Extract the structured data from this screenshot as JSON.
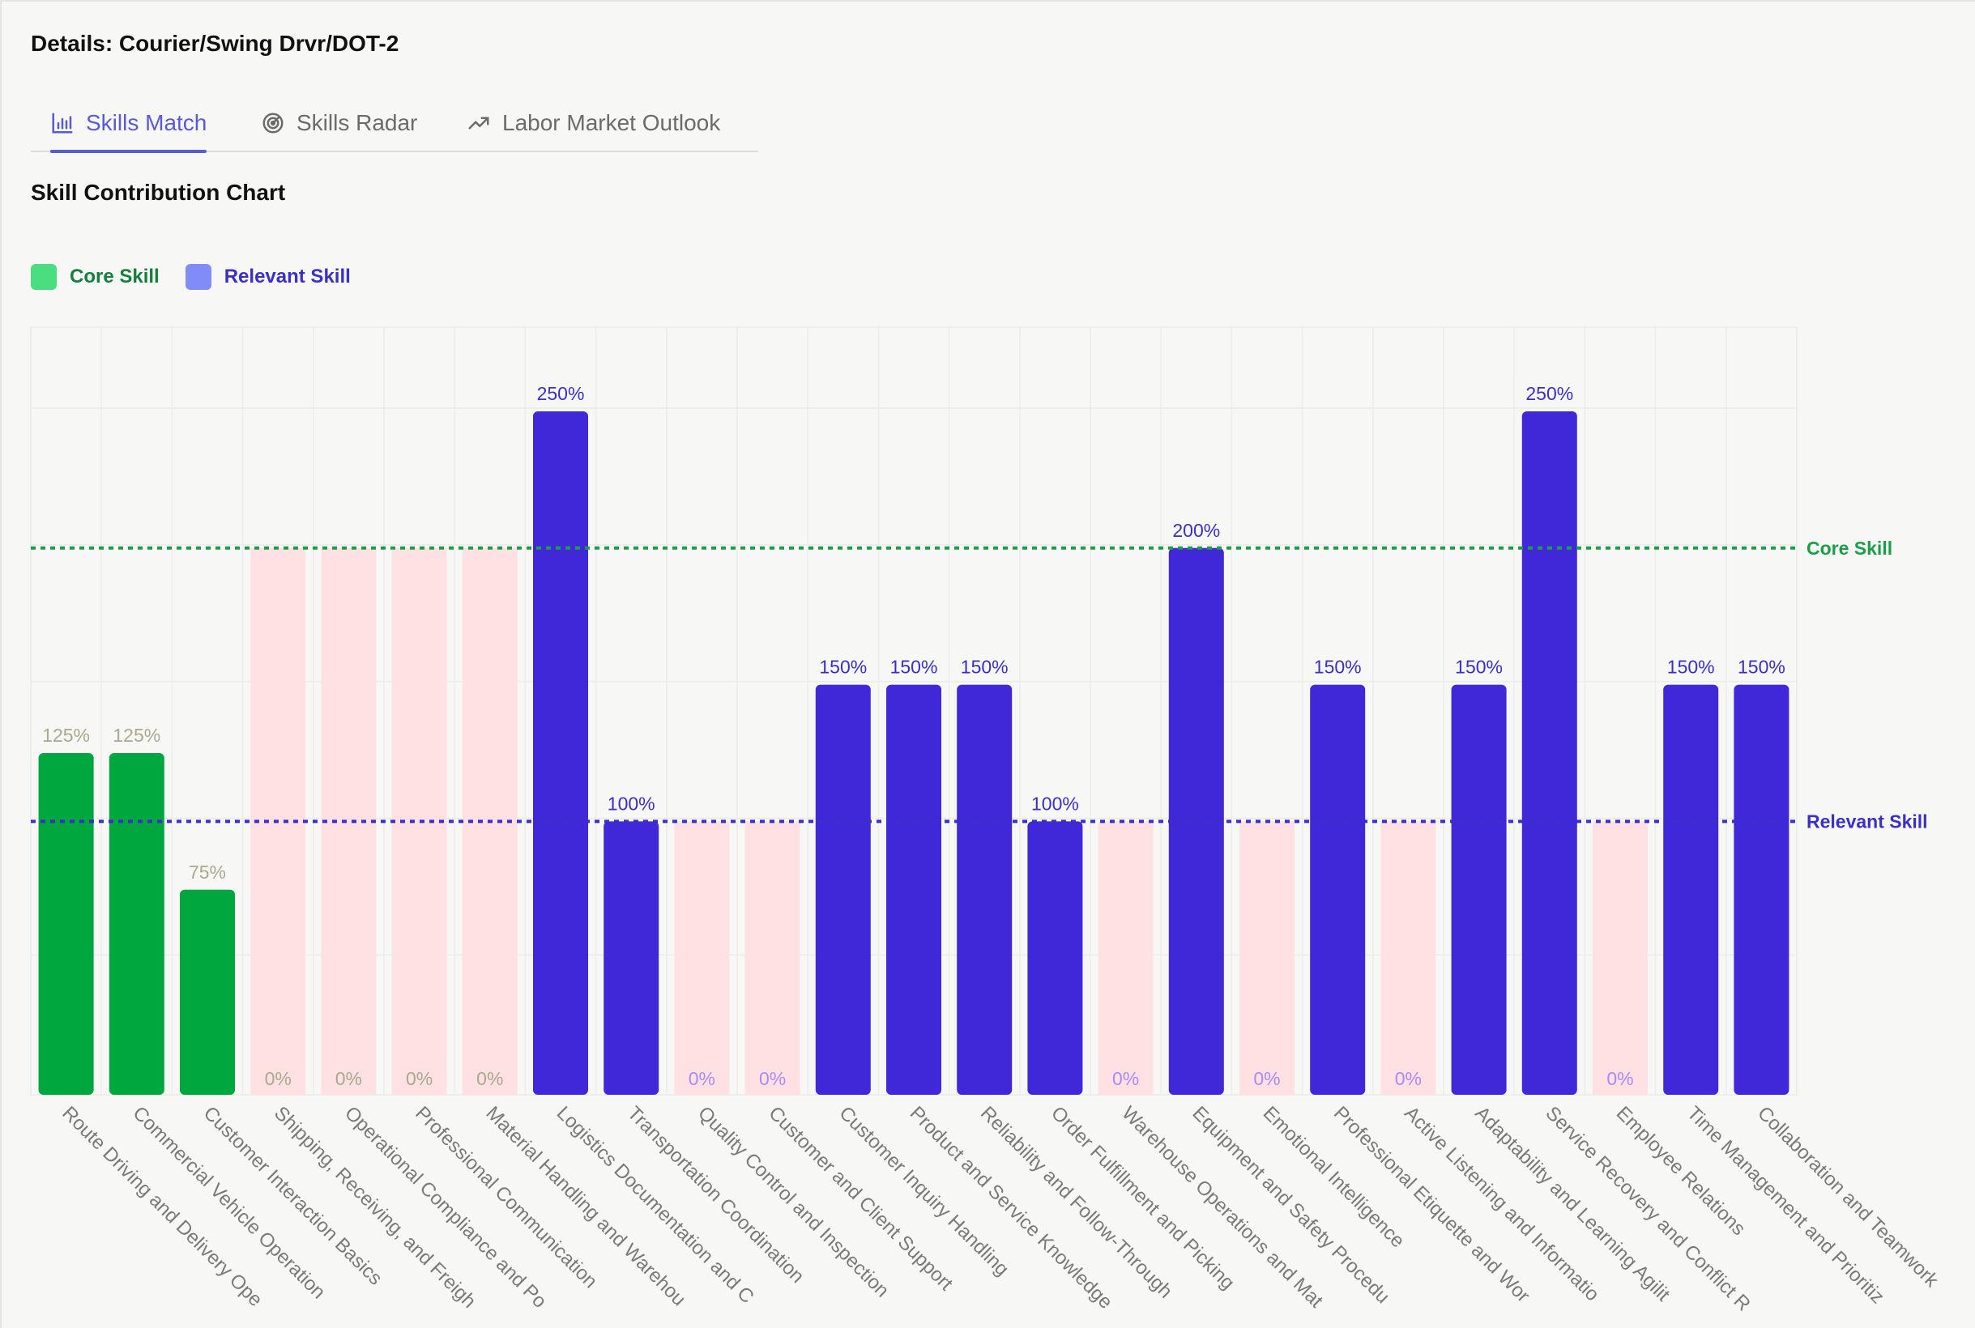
{
  "details_title": "Details: Courier/Swing Drvr/DOT-2",
  "tabs": [
    {
      "label": "Skills Match",
      "icon": "bar-chart-icon",
      "active": true
    },
    {
      "label": "Skills Radar",
      "icon": "radar-icon",
      "active": false
    },
    {
      "label": "Labor Market Outlook",
      "icon": "trending-up-icon",
      "active": false
    }
  ],
  "section_title": "Skill Contribution Chart",
  "legend": [
    {
      "label": "Core Skill",
      "color": "#4ade80",
      "text_color": "#15803d"
    },
    {
      "label": "Relevant Skill",
      "color": "#818cf8",
      "text_color": "#3b2fc9"
    }
  ],
  "colors": {
    "core_bar": "#00a63e",
    "relevant_bar": "#4028d8",
    "zero_bar": "#ffe1e3",
    "core_line": "#1a9f46",
    "relevant_line": "#3b2fc9",
    "zero_label": "#a8a98e",
    "zero_label_relevant": "#a78bfa",
    "core_label": "#16a34a",
    "relevant_label": "#3b2fc9"
  },
  "chart_data": {
    "type": "bar",
    "title": "Skill Contribution Chart",
    "ylim": [
      0,
      250
    ],
    "grid": true,
    "reference_lines": [
      {
        "label": "Core Skill",
        "value": 200
      },
      {
        "label": "Relevant Skill",
        "value": 100
      }
    ],
    "categories": [
      "Route Driving and Delivery Ope",
      "Commercial Vehicle Operation",
      "Customer Interaction Basics",
      "Shipping, Receiving, and Freigh",
      "Operational Compliance and Po",
      "Professional Communication",
      "Material Handling and Warehou",
      "Logistics Documentation and C",
      "Transportation Coordination",
      "Quality Control and Inspection",
      "Customer and Client Support",
      "Customer Inquiry Handling",
      "Product and Service Knowledge",
      "Reliability and Follow-Through",
      "Order Fulfillment and Picking",
      "Warehouse Operations and Mat",
      "Equipment and Safety Procedu",
      "Emotional Intelligence",
      "Professional Etiquette and Wor",
      "Active Listening and Informatio",
      "Adaptability and Learning Agilit",
      "Service Recovery and Conflict R",
      "Employee Relations",
      "Time Management and Prioritiz",
      "Collaboration and Teamwork"
    ],
    "values": [
      125,
      125,
      75,
      0,
      0,
      0,
      0,
      250,
      100,
      0,
      0,
      150,
      150,
      150,
      100,
      0,
      200,
      0,
      150,
      0,
      150,
      250,
      0,
      150,
      150
    ],
    "value_labels": [
      "125%",
      "125%",
      "75%",
      "0%",
      "0%",
      "0%",
      "0%",
      "250%",
      "100%",
      "0%",
      "0%",
      "150%",
      "150%",
      "150%",
      "100%",
      "0%",
      "200%",
      "0%",
      "150%",
      "0%",
      "150%",
      "250%",
      "0%",
      "150%",
      "150%"
    ],
    "skill_type": [
      "core",
      "core",
      "core",
      "core",
      "core",
      "core",
      "core",
      "relevant",
      "relevant",
      "relevant",
      "relevant",
      "relevant",
      "relevant",
      "relevant",
      "relevant",
      "relevant",
      "relevant",
      "relevant",
      "relevant",
      "relevant",
      "relevant",
      "relevant",
      "relevant",
      "relevant",
      "relevant"
    ]
  }
}
